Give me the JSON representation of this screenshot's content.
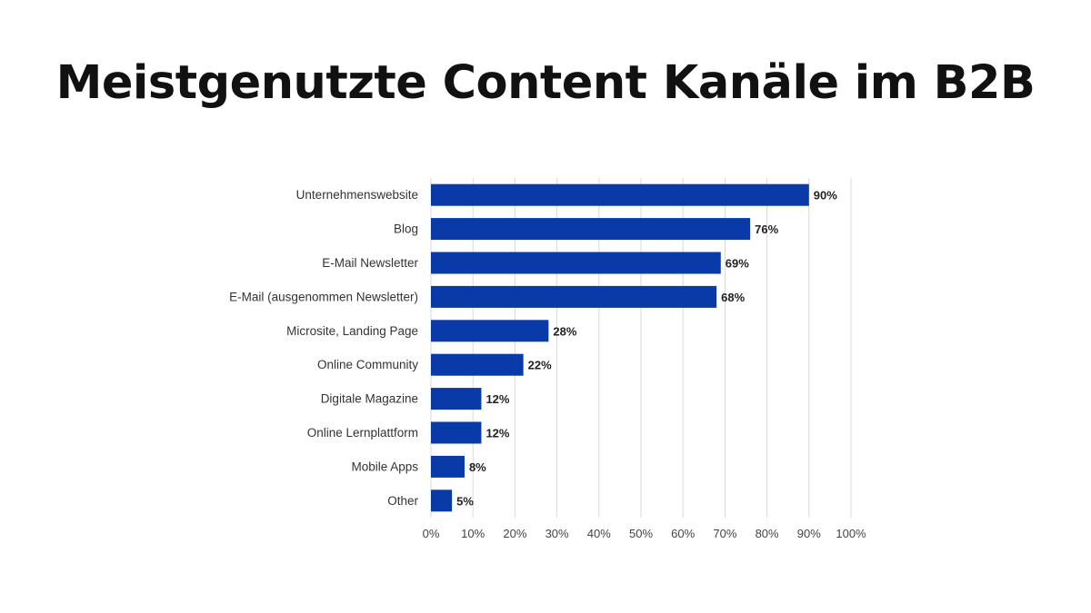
{
  "title": "Meistgenutzte Content Kanäle im B2B",
  "chart_data": {
    "type": "bar",
    "orientation": "horizontal",
    "title": "",
    "xlabel": "",
    "ylabel": "",
    "categories": [
      "Unternehmenswebsite",
      "Blog",
      "E-Mail Newsletter",
      "E-Mail (ausgenommen Newsletter)",
      "Microsite, Landing Page",
      "Online Community",
      "Digitale Magazine",
      "Online Lernplattform",
      "Mobile Apps",
      "Other"
    ],
    "values": [
      90,
      76,
      69,
      68,
      28,
      22,
      12,
      12,
      8,
      5
    ],
    "value_labels": [
      "90%",
      "76%",
      "69%",
      "68%",
      "28%",
      "22%",
      "12%",
      "12%",
      "8%",
      "5%"
    ],
    "xlim": [
      0,
      100
    ],
    "x_ticks": [
      0,
      10,
      20,
      30,
      40,
      50,
      60,
      70,
      80,
      90,
      100
    ],
    "x_tick_labels": [
      "0%",
      "10%",
      "20%",
      "30%",
      "40%",
      "50%",
      "60%",
      "70%",
      "80%",
      "90%",
      "100%"
    ],
    "grid": "vertical",
    "legend": "none",
    "bar_color": "#0a3aa8",
    "grid_color": "#d9d9d9"
  }
}
